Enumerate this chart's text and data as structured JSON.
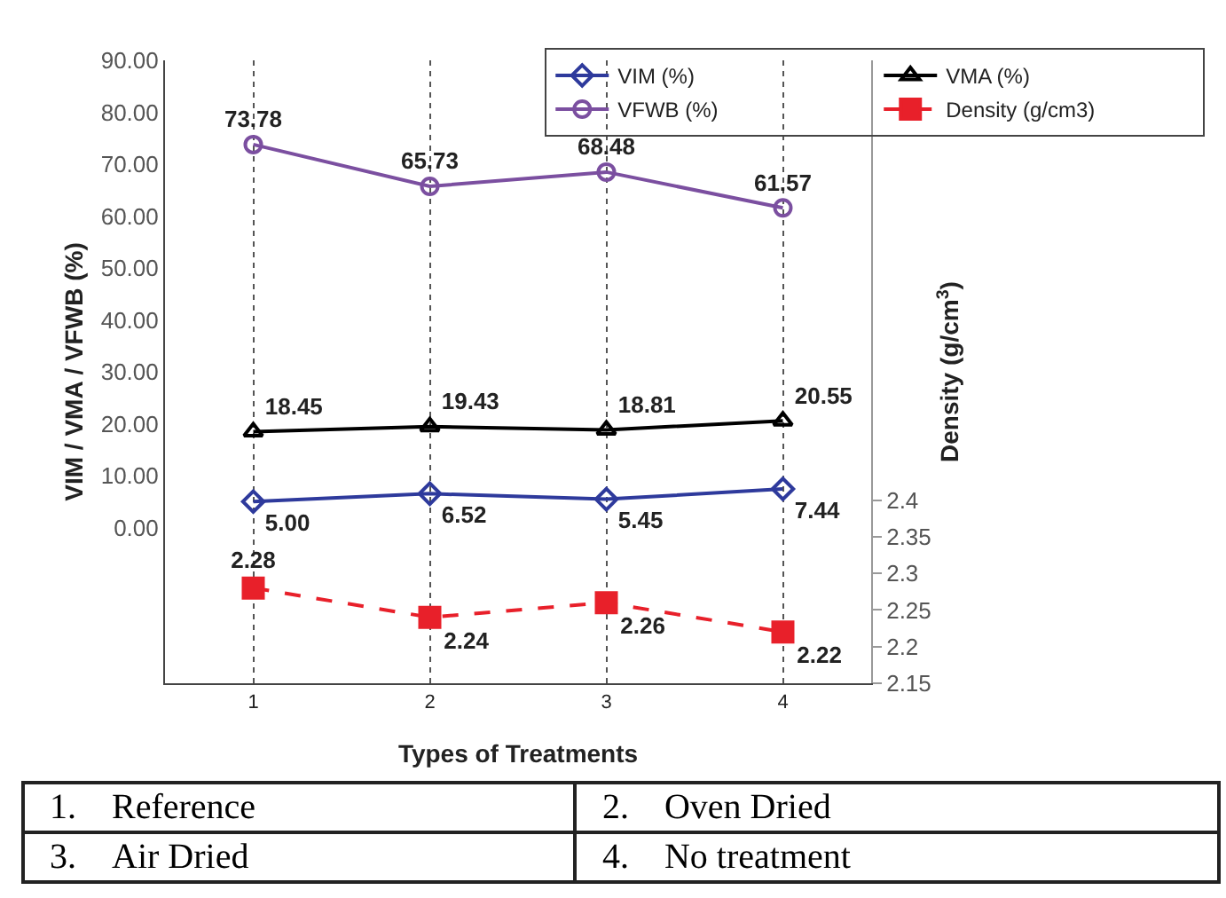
{
  "chart_data": {
    "type": "line",
    "xlabel": "Types of Treatments",
    "ylabel": "VIM / VMA / VFWB (%)",
    "y2label": "Density (g/cm$^{3}$)",
    "categories": [
      "1",
      "2",
      "3",
      "4"
    ],
    "series": [
      {
        "name": "VIM (%)",
        "color": "#2e3a9c",
        "values": [
          5.0,
          6.52,
          5.45,
          7.44
        ],
        "value_labels": [
          "5.00",
          "6.52",
          "5.45",
          "7.44"
        ],
        "marker": "diamond",
        "line_style": "solid"
      },
      {
        "name": "VMA (%)",
        "color": "#000000",
        "values": [
          18.45,
          19.43,
          18.81,
          20.55
        ],
        "value_labels": [
          "18.45",
          "19.43",
          "18.81",
          "20.55"
        ],
        "marker": "triangle",
        "line_style": "solid"
      },
      {
        "name": "VFWB (%)",
        "color": "#7b4fa0",
        "values": [
          73.78,
          65.73,
          68.48,
          61.57
        ],
        "value_labels": [
          "73.78",
          "65.73",
          "68.48",
          "61.57"
        ],
        "marker": "circle",
        "line_style": "solid"
      },
      {
        "name": "Density (g/cm3)",
        "color": "#e8202a",
        "values": [
          2.28,
          2.24,
          2.26,
          2.22
        ],
        "value_labels": [
          "2.28",
          "2.24",
          "2.26",
          "2.22"
        ],
        "marker": "square",
        "line_style": "dashed",
        "axis": "y2"
      }
    ],
    "ylim": [
      -30,
      90
    ],
    "yticks": [
      {
        "value": 0,
        "label": "0.00"
      },
      {
        "value": 10,
        "label": "10.00"
      },
      {
        "value": 20,
        "label": "20.00"
      },
      {
        "value": 30,
        "label": "30.00"
      },
      {
        "value": 40,
        "label": "40.00"
      },
      {
        "value": 50,
        "label": "50.00"
      },
      {
        "value": 60,
        "label": "60.00"
      },
      {
        "value": 70,
        "label": "70.00"
      },
      {
        "value": 80,
        "label": "80.00"
      },
      {
        "value": 90,
        "label": "90.00"
      }
    ],
    "y2lim": [
      2.15,
      3.0
    ],
    "y2ticks": [
      2.15,
      2.2,
      2.25,
      2.3,
      2.35,
      2.4
    ],
    "grid": "x",
    "legend": "top right",
    "annotations": [
      "1. Reference",
      "2. Oven Dried",
      "3. Air Dried",
      "4. No treatment"
    ]
  }
}
